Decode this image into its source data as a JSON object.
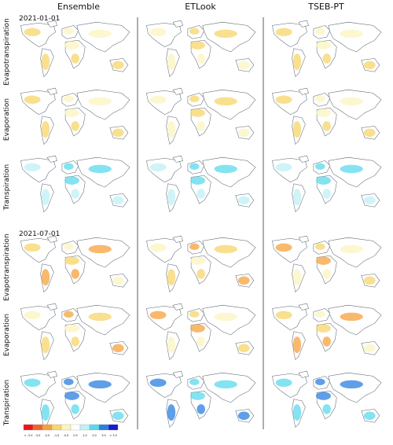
{
  "columns": [
    "Ensemble",
    "ETLook",
    "TSEB-PT"
  ],
  "dates": [
    "2021-01-01",
    "2021-07-01"
  ],
  "rows": [
    "Evapotranspiration",
    "Evaporation",
    "Transpiration",
    "Evapotranspiration",
    "Evaporation",
    "Transpiration"
  ],
  "colorbar": {
    "labels": [
      "< -3.0",
      "-3.0",
      "-2.0",
      "-1.0",
      "-0.5",
      "0.5",
      "1.0",
      "2.0",
      "3.0",
      "> 3.0"
    ],
    "colors": [
      "#e8161b",
      "#f2612c",
      "#f5a13c",
      "#f7d66a",
      "#fbf4bf",
      "#ffffff",
      "#bff0f5",
      "#5bd9ec",
      "#2a7fe0",
      "#1a1acd"
    ]
  }
}
